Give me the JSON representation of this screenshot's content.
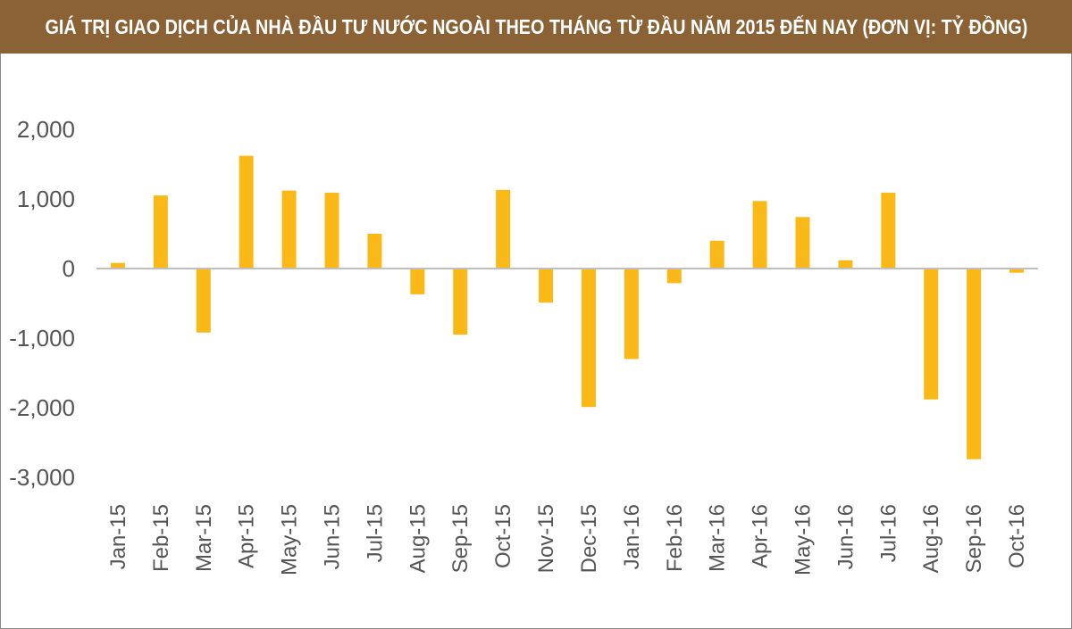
{
  "title": "GIÁ TRỊ GIAO DỊCH CỦA NHÀ ĐẦU TƯ NƯỚC NGOÀI THEO THÁNG TỪ ĐẦU NĂM 2015 ĐẾN NAY (ĐƠN VỊ: TỶ ĐỒNG)",
  "colors": {
    "header_bg": "#8b6235",
    "bar": "#fbb917",
    "axis": "#bfbfbf",
    "text": "#555555"
  },
  "chart_data": {
    "type": "bar",
    "title": "GIÁ TRỊ GIAO DỊCH CỦA NHÀ ĐẦU TƯ NƯỚC NGOÀI THEO THÁNG TỪ ĐẦU NĂM 2015 ĐẾN NAY (ĐƠN VỊ: TỶ ĐỒNG)",
    "xlabel": "",
    "ylabel": "",
    "categories": [
      "Jan-15",
      "Feb-15",
      "Mar-15",
      "Apr-15",
      "May-15",
      "Jun-15",
      "Jul-15",
      "Aug-15",
      "Sep-15",
      "Oct-15",
      "Nov-15",
      "Dec-15",
      "Jan-16",
      "Feb-16",
      "Mar-16",
      "Apr-16",
      "May-16",
      "Jun-16",
      "Jul-16",
      "Aug-16",
      "Sep-16",
      "Oct-16"
    ],
    "values": [
      80,
      1050,
      -920,
      1620,
      1120,
      1090,
      500,
      -370,
      -950,
      1130,
      -490,
      -1990,
      -1300,
      -210,
      400,
      970,
      740,
      120,
      1090,
      -1880,
      -2740,
      -60
    ],
    "ylim": [
      -3000,
      2000
    ],
    "yticks": [
      2000,
      1000,
      0,
      -1000,
      -2000,
      -3000
    ],
    "ytick_labels": [
      "2,000",
      "1,000",
      "0",
      "-1,000",
      "-2,000",
      "-3,000"
    ],
    "grid": false,
    "legend": "none"
  }
}
